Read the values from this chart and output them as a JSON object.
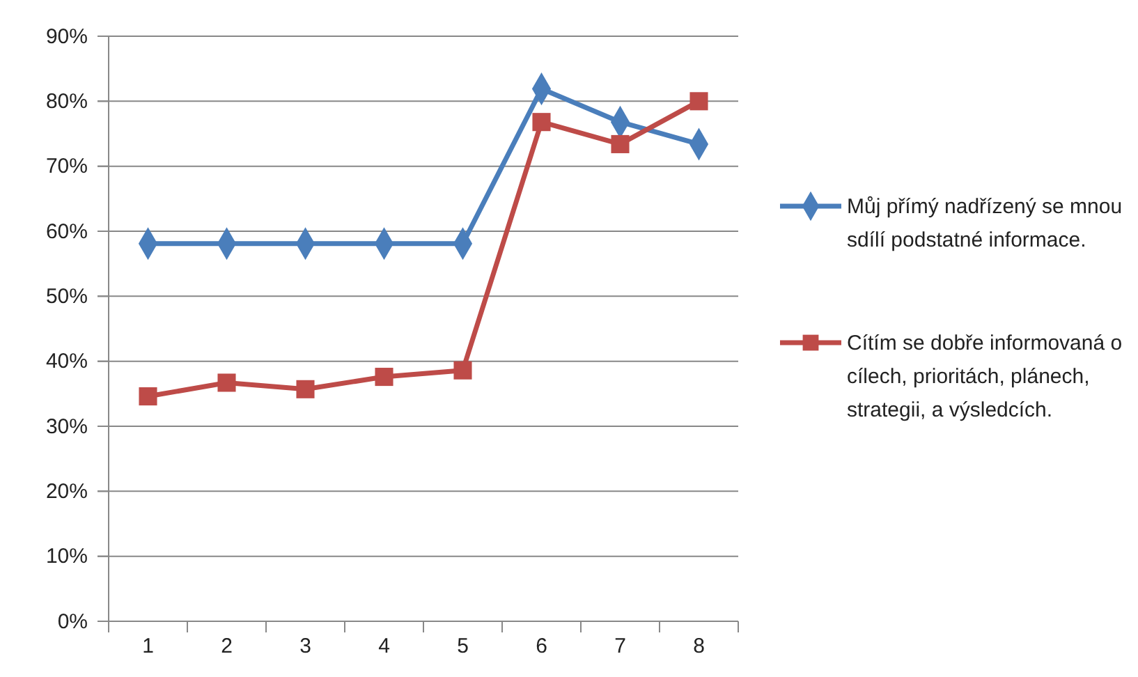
{
  "chart_data": {
    "type": "line",
    "categories": [
      "1",
      "2",
      "3",
      "4",
      "5",
      "6",
      "7",
      "8"
    ],
    "series": [
      {
        "name": "Můj přímý nadřízený se mnou sdílí podstatné informace.",
        "color": "#4a7ebb",
        "marker": "diamond",
        "values": [
          58.1,
          58.1,
          58.1,
          58.1,
          58.1,
          81.9,
          76.8,
          73.4
        ]
      },
      {
        "name": "Cítím se dobře informovaná o cílech, prioritách, plánech, strategii, a výsledcích.",
        "color": "#be4b48",
        "marker": "square",
        "values": [
          34.6,
          36.7,
          35.7,
          37.6,
          38.6,
          76.8,
          73.4,
          80.0
        ]
      }
    ],
    "ylim": [
      0,
      90
    ],
    "yticks": [
      {
        "value": 0,
        "label": "0%"
      },
      {
        "value": 10,
        "label": "10%"
      },
      {
        "value": 20,
        "label": "20%"
      },
      {
        "value": 30,
        "label": "30%"
      },
      {
        "value": 40,
        "label": "40%"
      },
      {
        "value": 50,
        "label": "50%"
      },
      {
        "value": 60,
        "label": "60%"
      },
      {
        "value": 70,
        "label": "70%"
      },
      {
        "value": 80,
        "label": "80%"
      },
      {
        "value": 90,
        "label": "90%"
      }
    ],
    "grid": "y",
    "legend": "right",
    "line_style": "solid"
  }
}
